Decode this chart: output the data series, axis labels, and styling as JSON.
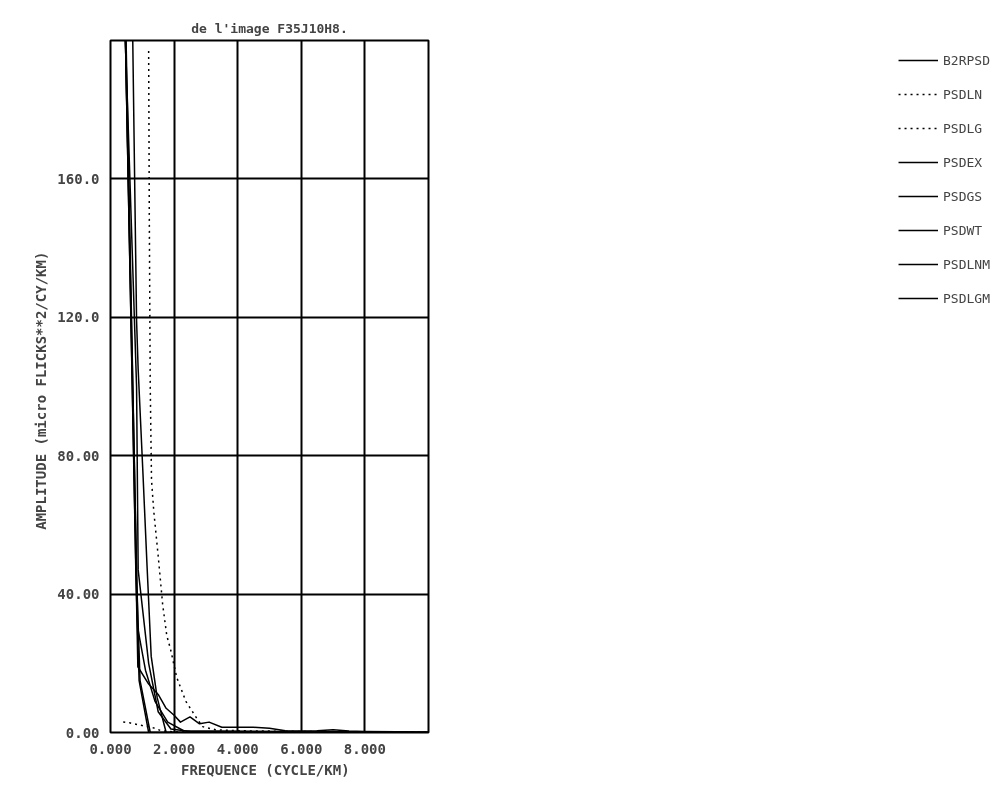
{
  "chart_data": {
    "type": "line",
    "title": "de l'image F35J10H8.",
    "xlabel": "FREQUENCE  (CYCLE/KM)",
    "ylabel": "AMPLITUDE  (micro FLICKS**2/CY/KM)",
    "xlim": [
      0,
      10
    ],
    "ylim": [
      0,
      200
    ],
    "xticks": [
      {
        "value": 0,
        "label": "0.000"
      },
      {
        "value": 2,
        "label": "2.000"
      },
      {
        "value": 4,
        "label": "4.000"
      },
      {
        "value": 6,
        "label": "6.000"
      },
      {
        "value": 8,
        "label": "8.000"
      }
    ],
    "yticks": [
      {
        "value": 0,
        "label": "0.00"
      },
      {
        "value": 40,
        "label": "40.00"
      },
      {
        "value": 80,
        "label": "80.00"
      },
      {
        "value": 120,
        "label": "120.0"
      },
      {
        "value": 160,
        "label": "160.0"
      }
    ],
    "grid": true,
    "legend": "right",
    "line_style": "solid",
    "marker": "none",
    "series": [
      {
        "name": "B2RPSD",
        "color": "#000000",
        "x": [
          0.47,
          0.86,
          1.2,
          1.5,
          1.75,
          2.0,
          2.2,
          2.5,
          2.8,
          3.1,
          3.5,
          4.0,
          4.5,
          5.0,
          5.5,
          6.0,
          6.5,
          7.0,
          7.5,
          8.0,
          9.0,
          10.0
        ],
        "values": [
          200,
          19,
          14,
          11,
          7,
          5,
          3,
          4.5,
          2.5,
          3,
          1.5,
          1.5,
          1.5,
          1.2,
          0.5,
          0.4,
          0.5,
          0.8,
          0.4,
          0.3,
          0.2,
          0.1
        ]
      },
      {
        "name": "PSDLN",
        "color": "#000000",
        "line_style": "dotted",
        "x": [
          1.2,
          1.22,
          1.25,
          1.29,
          1.36,
          1.5,
          1.64,
          1.77,
          1.89,
          2.08,
          2.37,
          2.72,
          2.9,
          3.3,
          4.0,
          6.0,
          8.0,
          10.0
        ],
        "values": [
          197,
          150,
          100,
          73,
          64,
          51,
          37,
          28,
          24,
          16,
          9,
          4,
          1.7,
          0.8,
          0.5,
          0.3,
          0.2,
          0.1
        ]
      },
      {
        "name": "PSDLG",
        "color": "#000000",
        "line_style": "dotted",
        "x": [
          0.4,
          0.6,
          0.8,
          1.0,
          1.3,
          1.6,
          2.0,
          3.0
        ],
        "values": [
          3,
          2.8,
          2.4,
          2,
          1.5,
          0.5,
          0.2,
          0
        ]
      },
      {
        "name": "PSDEX",
        "color": "#000000",
        "x": [
          0.7,
          0.82,
          0.87,
          1.02,
          1.15,
          1.28,
          1.47,
          1.75,
          10.0
        ],
        "values": [
          200,
          119,
          105,
          75,
          48,
          22,
          10,
          0,
          0
        ]
      },
      {
        "name": "PSDGS",
        "color": "#000000",
        "x": [
          0.47,
          0.82,
          0.87,
          1.2,
          1.5,
          1.9,
          2.5,
          10.0
        ],
        "values": [
          200,
          100,
          47,
          20,
          6,
          1,
          0.3,
          0
        ]
      },
      {
        "name": "PSDWT",
        "color": "#000000",
        "x": [
          0.47,
          0.86,
          1.1,
          1.4,
          1.8,
          2.3,
          10.0
        ],
        "values": [
          200,
          30,
          18,
          9,
          3,
          0.5,
          0
        ]
      },
      {
        "name": "PSDLNM",
        "color": "#000000",
        "x": [
          0.47,
          0.8,
          0.9,
          1.2,
          10.0
        ],
        "values": [
          200,
          45,
          15,
          0,
          0
        ]
      },
      {
        "name": "PSDLGM",
        "color": "#000000",
        "x": [
          0.49,
          0.82,
          0.93,
          1.25,
          10.0
        ],
        "values": [
          200,
          45,
          15,
          0,
          0
        ]
      }
    ]
  }
}
